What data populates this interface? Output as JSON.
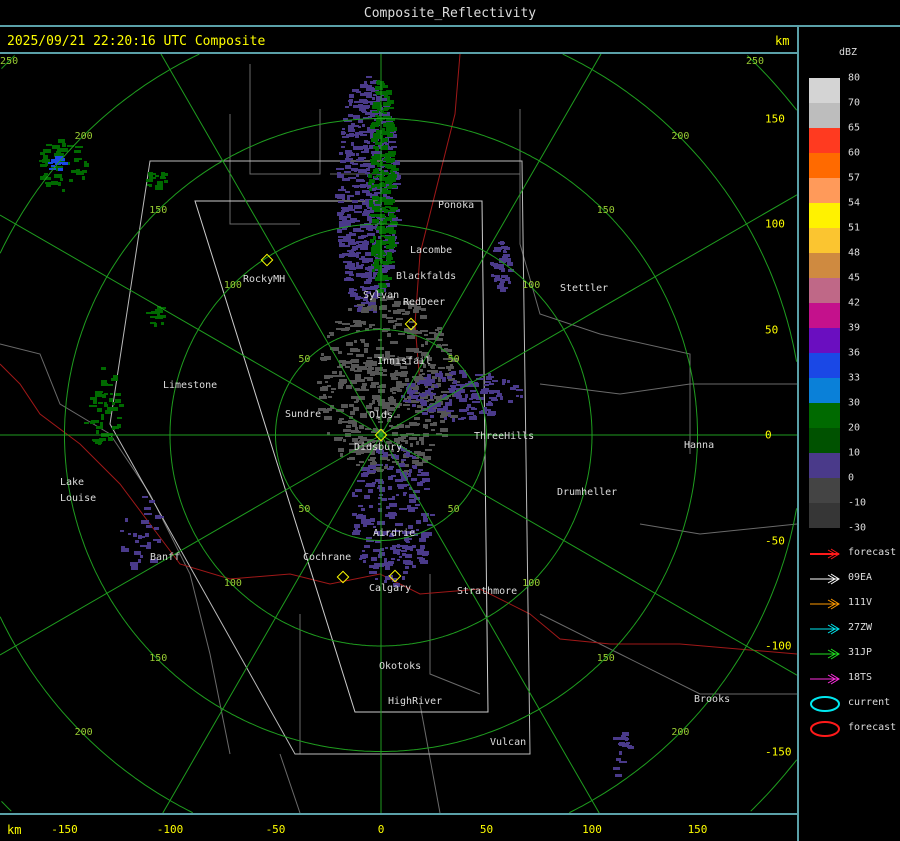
{
  "window": {
    "title": "Composite_Reflectivity"
  },
  "header": {
    "timestamp": "2025/09/21 22:20:16 UTC Composite",
    "km_label_top": "km",
    "km_label_bottom": "km"
  },
  "x_axis": {
    "ticks": [
      "-150",
      "-100",
      "-50",
      "0",
      "50",
      "100",
      "150"
    ]
  },
  "y_axis": {
    "ticks": [
      "150",
      "100",
      "50",
      "0",
      "-50",
      "-100",
      "-150"
    ]
  },
  "range_rings": {
    "labels": [
      "50",
      "100",
      "150",
      "200",
      "250"
    ],
    "km": [
      50,
      100,
      150,
      200,
      250
    ],
    "color": "#1f9d1f"
  },
  "cities": [
    "Ponoka",
    "Lacombe",
    "Blackfalds",
    "Sylvan",
    "RedDeer",
    "RockyMH",
    "Stettler",
    "Innisfail",
    "Limestone",
    "Sundre",
    "Olds",
    "Didsbury",
    "ThreeHills",
    "Hanna",
    "Lake",
    "Louise",
    "Drumheller",
    "Airdrie",
    "Banff",
    "Cochrane",
    "Calgary",
    "Strathmore",
    "Okotoks",
    "HighRiver",
    "Brooks",
    "Vulcan"
  ],
  "colorbar": {
    "unit": "dBZ",
    "levels": [
      "80",
      "70",
      "65",
      "60",
      "57",
      "54",
      "51",
      "48",
      "45",
      "42",
      "39",
      "36",
      "33",
      "30",
      "20",
      "10",
      "0",
      "-10",
      "-30"
    ],
    "colors": [
      "#d4d4d4",
      "#bdbdbd",
      "#ff3a20",
      "#ff6a00",
      "#ff9a5a",
      "#fff200",
      "#fbc530",
      "#cf8a40",
      "#bf6887",
      "#c4118c",
      "#6a0ec0",
      "#1a48e6",
      "#0a80d8",
      "#006a00",
      "#005200",
      "#4a3a8a",
      "#444444",
      "#363636"
    ]
  },
  "legend": [
    {
      "label": "forecast",
      "type": "arrow",
      "color": "#ff1a1a"
    },
    {
      "label": "09EA",
      "type": "arrow",
      "color": "#ffffff"
    },
    {
      "label": "111V",
      "type": "arrow",
      "color": "#ff9a00"
    },
    {
      "label": "27ZW",
      "type": "arrow",
      "color": "#00e8f0"
    },
    {
      "label": "31JP",
      "type": "arrow",
      "color": "#20e020"
    },
    {
      "label": "18TS",
      "type": "arrow",
      "color": "#ff30e0"
    },
    {
      "label": "current",
      "type": "ellipse",
      "color": "#00e8f0"
    },
    {
      "label": "forecast",
      "type": "ellipse",
      "color": "#ff1a1a"
    }
  ]
}
